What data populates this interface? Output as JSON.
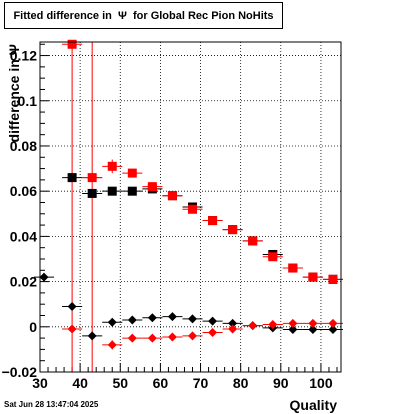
{
  "chart_data": {
    "type": "scatter",
    "title": "Fitted difference in  Ψ  for Global Rec Pion NoHits",
    "xlabel": "Quality",
    "ylabel": "difference in Ψ",
    "xlim": [
      30,
      105
    ],
    "ylim": [
      -0.02,
      0.126
    ],
    "x_ticks": [
      30,
      40,
      50,
      60,
      70,
      80,
      90,
      100
    ],
    "y_ticks": [
      -0.02,
      0,
      0.02,
      0.04,
      0.06,
      0.08,
      0.1,
      0.12
    ],
    "y_tick_labels": [
      "−0.02",
      "0",
      "0.02",
      "0.04",
      "0.06",
      "0.08",
      "0.1",
      "0.12"
    ],
    "grid": true,
    "vertical_lines": [
      38,
      43
    ],
    "timestamp": "Sat Jun 28 13:47:04 2025",
    "series": [
      {
        "marker": "square",
        "color": "#000000",
        "points": [
          {
            "x": 38,
            "y": 0.066
          },
          {
            "x": 43,
            "y": 0.059
          },
          {
            "x": 48,
            "y": 0.06
          },
          {
            "x": 53,
            "y": 0.06
          },
          {
            "x": 58,
            "y": 0.061
          },
          {
            "x": 63,
            "y": 0.058
          },
          {
            "x": 68,
            "y": 0.053
          },
          {
            "x": 73,
            "y": 0.047
          },
          {
            "x": 78,
            "y": 0.043
          },
          {
            "x": 83,
            "y": 0.038
          },
          {
            "x": 88,
            "y": 0.032
          },
          {
            "x": 93,
            "y": 0.026
          },
          {
            "x": 98,
            "y": 0.022
          },
          {
            "x": 103,
            "y": 0.021
          }
        ]
      },
      {
        "marker": "square",
        "color": "#ff0000",
        "points": [
          {
            "x": 38,
            "y": 0.125
          },
          {
            "x": 43,
            "y": 0.066
          },
          {
            "x": 48,
            "y": 0.071,
            "err": 0.003
          },
          {
            "x": 53,
            "y": 0.068
          },
          {
            "x": 58,
            "y": 0.062
          },
          {
            "x": 63,
            "y": 0.058
          },
          {
            "x": 68,
            "y": 0.052
          },
          {
            "x": 73,
            "y": 0.047
          },
          {
            "x": 78,
            "y": 0.043
          },
          {
            "x": 83,
            "y": 0.038
          },
          {
            "x": 88,
            "y": 0.031
          },
          {
            "x": 93,
            "y": 0.026
          },
          {
            "x": 98,
            "y": 0.022
          },
          {
            "x": 103,
            "y": 0.021
          }
        ]
      },
      {
        "marker": "diamond",
        "color": "#000000",
        "points": [
          {
            "x": 31,
            "y": 0.022
          },
          {
            "x": 38,
            "y": 0.009
          },
          {
            "x": 43,
            "y": -0.004
          },
          {
            "x": 48,
            "y": 0.002
          },
          {
            "x": 53,
            "y": 0.003
          },
          {
            "x": 58,
            "y": 0.004
          },
          {
            "x": 63,
            "y": 0.0045
          },
          {
            "x": 68,
            "y": 0.0035
          },
          {
            "x": 73,
            "y": 0.0025
          },
          {
            "x": 78,
            "y": 0.0015
          },
          {
            "x": 83,
            "y": 0.0005
          },
          {
            "x": 88,
            "y": -0.0005
          },
          {
            "x": 93,
            "y": -0.0012
          },
          {
            "x": 98,
            "y": -0.0012
          },
          {
            "x": 103,
            "y": -0.0012
          }
        ]
      },
      {
        "marker": "diamond",
        "color": "#ff0000",
        "points": [
          {
            "x": 38,
            "y": -0.001
          },
          {
            "x": 43,
            "y": 0.066
          },
          {
            "x": 48,
            "y": -0.008,
            "err": 0.002
          },
          {
            "x": 53,
            "y": -0.005
          },
          {
            "x": 58,
            "y": -0.005
          },
          {
            "x": 63,
            "y": -0.0045
          },
          {
            "x": 68,
            "y": -0.004
          },
          {
            "x": 73,
            "y": -0.0025
          },
          {
            "x": 78,
            "y": -0.001
          },
          {
            "x": 83,
            "y": 0.0005
          },
          {
            "x": 88,
            "y": 0.001
          },
          {
            "x": 93,
            "y": 0.0015
          },
          {
            "x": 98,
            "y": 0.0015
          },
          {
            "x": 103,
            "y": 0.0015
          }
        ]
      }
    ]
  }
}
